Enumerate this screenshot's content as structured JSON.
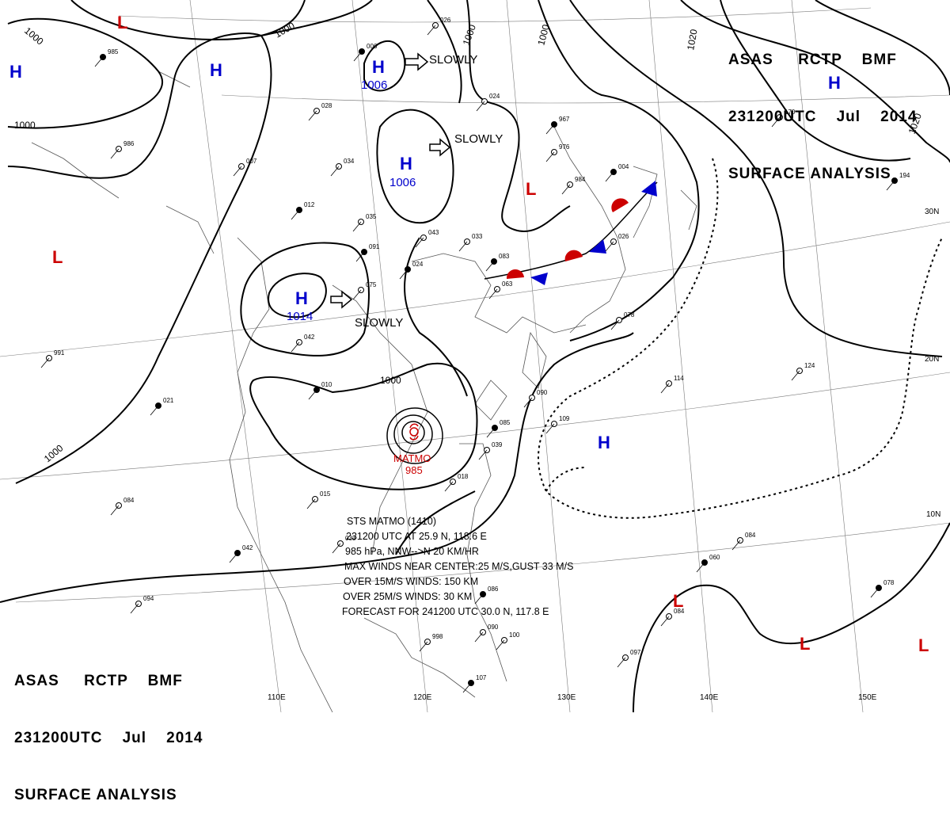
{
  "header_tr": {
    "line1": "ASAS     RCTP    BMF",
    "line2": "231200UTC    Jul    2014",
    "line3": "SURFACE ANALYSIS"
  },
  "header_bl": {
    "line1": "ASAS     RCTP    BMF",
    "line2": "231200UTC    Jul    2014",
    "line3": "SURFACE ANALYSIS"
  },
  "colors": {
    "high": "#0000cc",
    "low": "#cc0000",
    "warm_front": "#cc0000",
    "cold_front": "#0000cc",
    "typhoon": "#cc0000"
  },
  "pressure_centers": [
    {
      "type": "L",
      "value": ""
    },
    {
      "type": "H",
      "value": ""
    },
    {
      "type": "H",
      "value": ""
    },
    {
      "type": "H",
      "value": "1006"
    },
    {
      "type": "H",
      "value": "1006"
    },
    {
      "type": "L",
      "value": ""
    },
    {
      "type": "L",
      "value": ""
    },
    {
      "type": "H",
      "value": "1014"
    },
    {
      "type": "H",
      "value": ""
    },
    {
      "type": "H",
      "value": ""
    },
    {
      "type": "L",
      "value": ""
    },
    {
      "type": "L",
      "value": ""
    },
    {
      "type": "L",
      "value": ""
    }
  ],
  "movement_labels": [
    "SLOWLY",
    "SLOWLY",
    "SLOWLY"
  ],
  "isobar_labels": [
    "1000",
    "1000",
    "1000",
    "1000",
    "1000",
    "1000",
    "1020",
    "1020",
    "1000"
  ],
  "graticule_labels": [
    "110E",
    "120E",
    "130E",
    "140E",
    "150E",
    "10N",
    "20N",
    "30N"
  ],
  "typhoon": {
    "name": "MATMO",
    "pressure": "985"
  },
  "typhoon_box": [
    "STS  MATMO  (1410)",
    "231200 UTC  AT 25.9 N, 118.6 E",
    "985 hPa, NNW-->N   20 KM/HR",
    "MAX WINDS NEAR CENTER:25 M/S,GUST 33 M/S",
    "OVER 15M/S WINDS: 150 KM",
    "OVER 25M/S WINDS:  30 KM",
    "FORECAST FOR 241200 UTC 30.0 N, 117.8 E"
  ],
  "station_labels": [
    "985",
    "007",
    "034",
    "012",
    "035",
    "028",
    "006",
    "026",
    "024",
    "024",
    "043",
    "033",
    "091",
    "075",
    "042",
    "010",
    "015",
    "033",
    "042",
    "094",
    "084",
    "021",
    "991",
    "986",
    "967",
    "976",
    "984",
    "004",
    "090",
    "109",
    "085",
    "039",
    "018",
    "086",
    "090",
    "100",
    "107",
    "097",
    "084",
    "078",
    "114",
    "124",
    "060",
    "084",
    "170",
    "194",
    "998",
    "063",
    "083",
    "026",
    "078"
  ]
}
